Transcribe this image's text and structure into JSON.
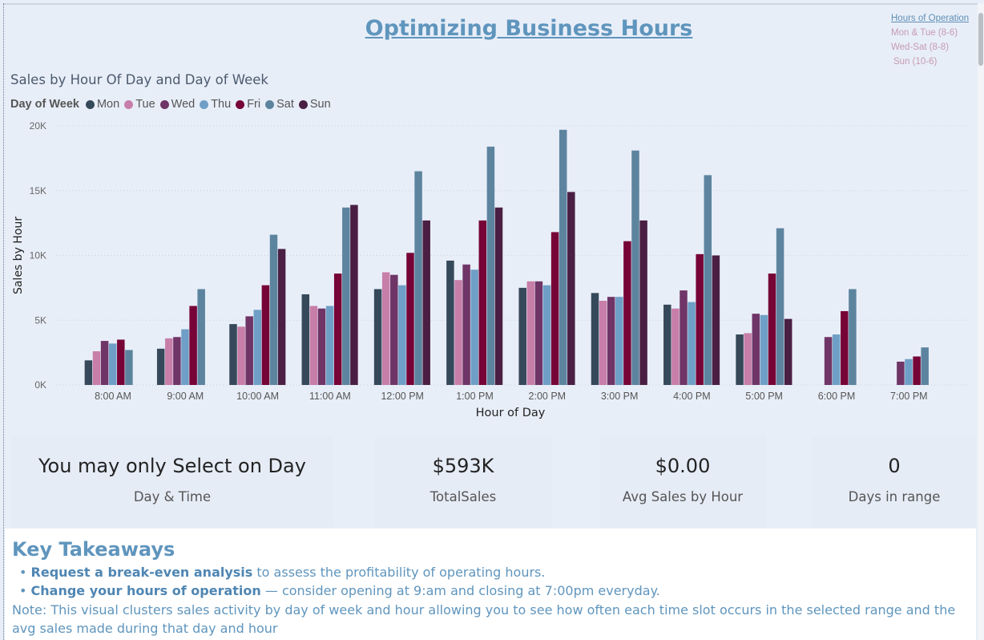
{
  "report": {
    "title": "Optimizing Business Hours",
    "hours_of_operation": {
      "title": "Hours of Operation",
      "lines": [
        "Mon & Tue (8-6)",
        "Wed-Sat (8-8)",
        "Sun (10-6)"
      ]
    }
  },
  "chart_data": {
    "type": "bar",
    "title": "Sales by Hour Of Day and Day of Week",
    "xlabel": "Hour of Day",
    "ylabel": "Sales by Hour",
    "ylim": [
      0,
      20000
    ],
    "yticks": [
      {
        "value": 0,
        "label": "0K"
      },
      {
        "value": 5000,
        "label": "5K"
      },
      {
        "value": 10000,
        "label": "10K"
      },
      {
        "value": 15000,
        "label": "15K"
      },
      {
        "value": 20000,
        "label": "20K"
      }
    ],
    "grid": true,
    "legend_title": "Day of Week",
    "legend_position": "top-left",
    "categories": [
      "8:00 AM",
      "9:00 AM",
      "10:00 AM",
      "11:00 AM",
      "12:00 PM",
      "1:00 PM",
      "2:00 PM",
      "3:00 PM",
      "4:00 PM",
      "5:00 PM",
      "6:00 PM",
      "7:00 PM"
    ],
    "series": [
      {
        "name": "Mon",
        "color": "#36495a",
        "values": [
          1900,
          2800,
          4700,
          7000,
          7400,
          9600,
          7500,
          7100,
          6200,
          3900,
          null,
          null
        ]
      },
      {
        "name": "Tue",
        "color": "#c77ea8",
        "values": [
          2600,
          3600,
          4500,
          6100,
          8700,
          8100,
          8000,
          6500,
          5900,
          4000,
          null,
          null
        ]
      },
      {
        "name": "Wed",
        "color": "#6f3567",
        "values": [
          3400,
          3700,
          5300,
          5900,
          8500,
          9300,
          8000,
          6800,
          7300,
          5500,
          3700,
          1800
        ]
      },
      {
        "name": "Thu",
        "color": "#6f9fc6",
        "values": [
          3200,
          4300,
          5800,
          6100,
          7700,
          8900,
          7700,
          6800,
          6400,
          5400,
          3900,
          2000
        ]
      },
      {
        "name": "Fri",
        "color": "#760436",
        "values": [
          3500,
          6100,
          7700,
          8600,
          10200,
          12700,
          11800,
          11100,
          10100,
          8600,
          5700,
          2200
        ]
      },
      {
        "name": "Sat",
        "color": "#5d849e",
        "values": [
          2700,
          7400,
          11600,
          13700,
          16500,
          18400,
          19700,
          18100,
          16200,
          12100,
          7400,
          2900
        ]
      },
      {
        "name": "Sun",
        "color": "#4a1f43",
        "values": [
          null,
          null,
          10500,
          13900,
          12700,
          13700,
          14900,
          12700,
          10000,
          5100,
          null,
          null
        ]
      }
    ]
  },
  "cards": [
    {
      "value": "You may only Select on Day",
      "label": "Day & Time"
    },
    {
      "value": "$593K",
      "label": "TotalSales"
    },
    {
      "value": "$0.00",
      "label": "Avg Sales by Hour"
    },
    {
      "value": "0",
      "label": "Days in range"
    }
  ],
  "takeaways": {
    "title": "Key Takeaways",
    "bullets": [
      {
        "bold": "Request a break-even analysis",
        "text": " to assess the profitability of operating hours."
      },
      {
        "bold": "Change your hours of operation",
        "text": " —  consider opening at 9:am and closing at 7:00pm everyday."
      }
    ],
    "note": "Note: This visual clusters sales activity by day of week and hour allowing you to see how often each time slot occurs in the selected range and the avg sales made during that day and hour"
  }
}
